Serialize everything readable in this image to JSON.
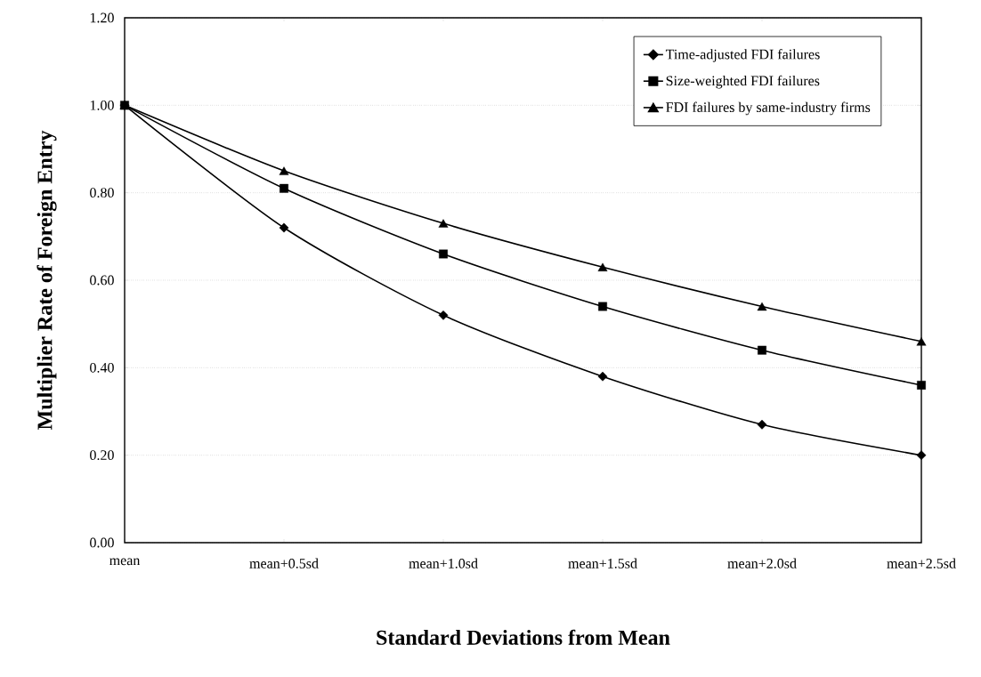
{
  "chart_data": {
    "type": "line",
    "xlabel": "Standard Deviations from Mean",
    "ylabel": "Multiplier Rate of Foreign Entry",
    "categories": [
      "mean",
      "mean+0.5sd",
      "mean+1.0sd",
      "mean+1.5sd",
      "mean+2.0sd",
      "mean+2.5sd"
    ],
    "series": [
      {
        "name": "Time-adjusted FDI failures",
        "color": "#000000",
        "marker": "diamond",
        "values": [
          1.0,
          0.72,
          0.52,
          0.38,
          0.27,
          0.2
        ]
      },
      {
        "name": "Size-weighted FDI failures",
        "color": "#000000",
        "marker": "square",
        "values": [
          1.0,
          0.81,
          0.66,
          0.54,
          0.44,
          0.36
        ]
      },
      {
        "name": "FDI failures by same-industry firms",
        "color": "#000000",
        "marker": "triangle",
        "values": [
          1.0,
          0.85,
          0.73,
          0.63,
          0.54,
          0.46
        ]
      }
    ],
    "ylim": [
      0,
      1.2
    ],
    "yticks": [
      {
        "value": 0,
        "label": "0.00"
      },
      {
        "value": 0.2,
        "label": "0.20"
      },
      {
        "value": 0.4,
        "label": "0.40"
      },
      {
        "value": 0.6,
        "label": "0.60"
      },
      {
        "value": 0.8,
        "label": "0.80"
      },
      {
        "value": 1.0,
        "label": "1.00"
      },
      {
        "value": 1.2,
        "label": "1.20"
      }
    ],
    "grid": "y",
    "legend": "top right",
    "line_style": "solid"
  }
}
